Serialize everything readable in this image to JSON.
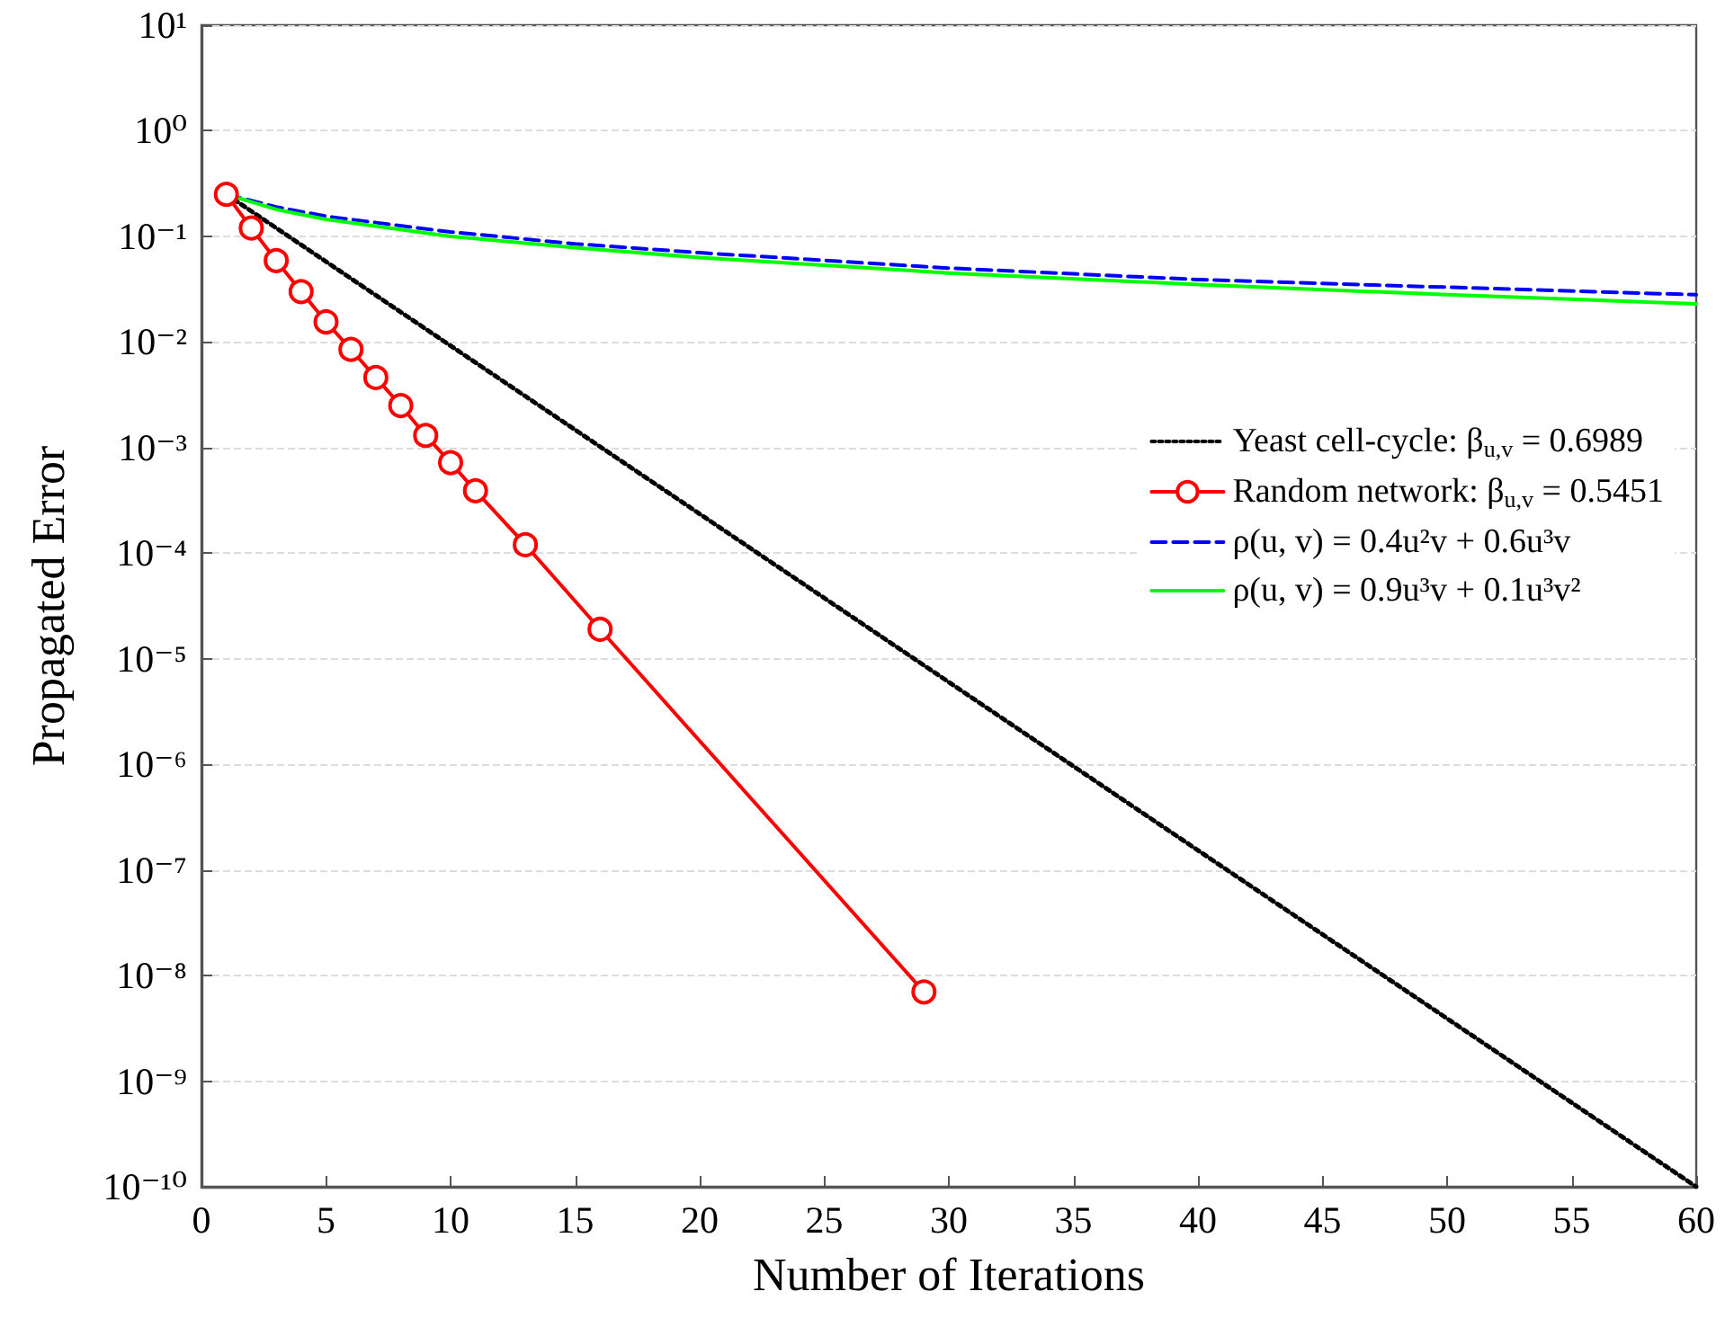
{
  "chart_data": {
    "type": "line",
    "xlabel": "Number of Iterations",
    "ylabel": "Propagated Error",
    "xlim": [
      0,
      60
    ],
    "xticks": [
      0,
      5,
      10,
      15,
      20,
      25,
      30,
      35,
      40,
      45,
      50,
      55,
      60
    ],
    "ylim": [
      1e-10,
      10
    ],
    "log": true,
    "yticks": [
      {
        "value": 1e-10,
        "label": "10⁻¹⁰"
      },
      {
        "value": 1e-09,
        "label": "10⁻⁹"
      },
      {
        "value": 1e-08,
        "label": "10⁻⁸"
      },
      {
        "value": 1e-07,
        "label": "10⁻⁷"
      },
      {
        "value": 1e-06,
        "label": "10⁻⁶"
      },
      {
        "value": 1e-05,
        "label": "10⁻⁵"
      },
      {
        "value": 0.0001,
        "label": "10⁻⁴"
      },
      {
        "value": 0.001,
        "label": "10⁻³"
      },
      {
        "value": 0.01,
        "label": "10⁻²"
      },
      {
        "value": 0.1,
        "label": "10⁻¹"
      },
      {
        "value": 1,
        "label": "10⁰"
      },
      {
        "value": 10,
        "label": "10¹"
      }
    ],
    "grid": "y",
    "legend": "right",
    "series": [
      {
        "name": "Yeast cell-cycle: β$_{u,v}$ = 0.6989",
        "color": "#000000",
        "line_style": "dotted",
        "marker": "none",
        "x": [
          1,
          60
        ],
        "values": [
          0.25,
          1e-10
        ]
      },
      {
        "name": "Random network: β$_{u,v}$ = 0.5451",
        "color": "#ff0000",
        "line_style": "solid",
        "marker": "circle",
        "x": [
          1,
          2,
          3,
          4,
          5,
          6,
          7,
          8,
          9,
          10,
          11,
          13,
          16,
          29
        ],
        "values": [
          0.25,
          0.12,
          0.059,
          0.03,
          0.0155,
          0.0085,
          0.0046,
          0.0025,
          0.0013,
          0.00072,
          0.00039,
          0.00012,
          1.9e-05,
          7e-09
        ]
      },
      {
        "name": "ρ(u, v) = 0.4u²v + 0.6u³v",
        "color": "#0000ff",
        "line_style": "dashed",
        "marker": "none",
        "x": [
          1,
          3,
          5,
          10,
          15,
          20,
          30,
          40,
          50,
          60
        ],
        "values": [
          0.25,
          0.19,
          0.155,
          0.11,
          0.085,
          0.07,
          0.05,
          0.039,
          0.033,
          0.028
        ]
      },
      {
        "name": "ρ(u, v) = 0.9u³v + 0.1u³v²",
        "color": "#00ff00",
        "line_style": "solid",
        "marker": "none",
        "x": [
          1,
          3,
          5,
          10,
          15,
          20,
          30,
          40,
          50,
          60
        ],
        "values": [
          0.25,
          0.18,
          0.145,
          0.1,
          0.078,
          0.063,
          0.045,
          0.035,
          0.028,
          0.023
        ]
      }
    ]
  }
}
